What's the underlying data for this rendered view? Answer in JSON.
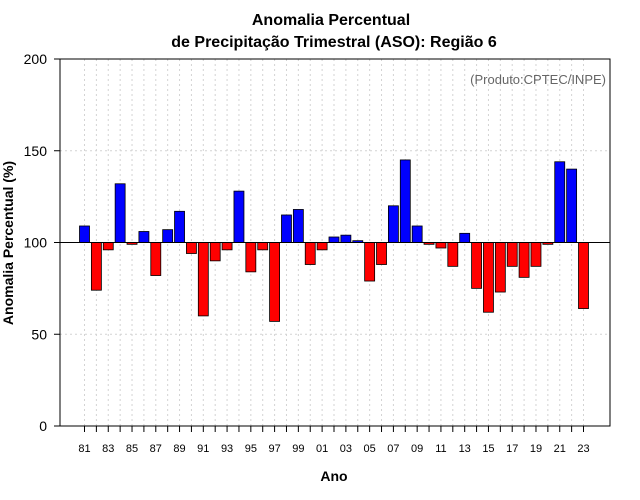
{
  "chart_data": {
    "type": "bar",
    "title_line1": "Anomalia Percentual",
    "title_line2": "de Precipitação Trimestral (ASO): Região 6",
    "xlabel": "Ano",
    "ylabel": "Anomalia Percentual (%)",
    "credit": "(Produto:CPTEC/INPE)",
    "ylim": [
      0,
      200
    ],
    "yticks": [
      0,
      50,
      100,
      150,
      200
    ],
    "baseline": 100,
    "grid": true,
    "colors": {
      "above": "#0000ff",
      "below": "#ff0000",
      "outline": "#000000",
      "grid": "#d3d3d3"
    },
    "categories": [
      "81",
      "82",
      "83",
      "84",
      "85",
      "86",
      "87",
      "88",
      "89",
      "90",
      "91",
      "92",
      "93",
      "94",
      "95",
      "96",
      "97",
      "98",
      "99",
      "00",
      "01",
      "02",
      "03",
      "04",
      "05",
      "06",
      "07",
      "08",
      "09",
      "10",
      "11",
      "12",
      "13",
      "14",
      "15",
      "16",
      "17",
      "18",
      "19",
      "20",
      "21",
      "22",
      "23"
    ],
    "xtick_labels": [
      "81",
      "83",
      "85",
      "87",
      "89",
      "91",
      "93",
      "95",
      "97",
      "99",
      "01",
      "03",
      "05",
      "07",
      "09",
      "11",
      "13",
      "15",
      "17",
      "19",
      "21",
      "23"
    ],
    "values": [
      109,
      74,
      96,
      132,
      99,
      106,
      82,
      107,
      117,
      94,
      60,
      90,
      96,
      128,
      84,
      96,
      57,
      115,
      118,
      88,
      96,
      103,
      104,
      101,
      79,
      88,
      120,
      145,
      109,
      99,
      97,
      87,
      105,
      75,
      62,
      73,
      87,
      81,
      87,
      99,
      144,
      140,
      64
    ]
  }
}
